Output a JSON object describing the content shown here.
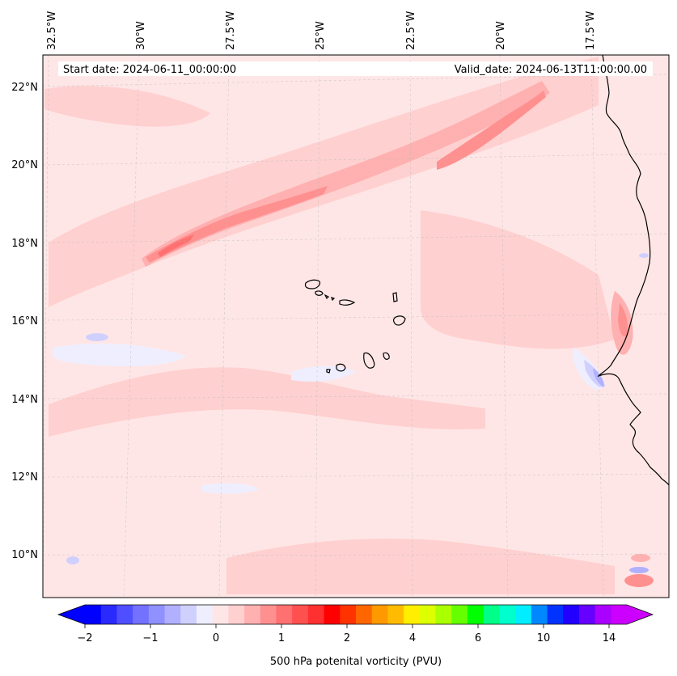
{
  "map": {
    "start_date": "Start date: 2024-06-11_00:00:00",
    "valid_date": "Valid_date: 2024-06-13T11:00:00.00",
    "lon_labels": [
      "32.5°W",
      "30°W",
      "27.5°W",
      "25°W",
      "22.5°W",
      "20°W",
      "17.5°W"
    ],
    "lat_labels": [
      "22°N",
      "20°N",
      "18°N",
      "16°N",
      "14°N",
      "12°N",
      "10°N"
    ],
    "background_color": "#ffe6e6",
    "coastline_color": "#000000"
  },
  "colorbar": {
    "label": "500 hPa potenital vorticity (PVU)",
    "tick_labels": [
      "−2",
      "−1",
      "0",
      "1",
      "2",
      "4",
      "6",
      "10",
      "14"
    ],
    "colors": [
      "#0000ff",
      "#2a2aff",
      "#4f4fff",
      "#7272ff",
      "#9090ff",
      "#b0b0ff",
      "#d0d0ff",
      "#eeeeff",
      "#ffe6e6",
      "#ffd0d0",
      "#ffb0b0",
      "#ff9090",
      "#ff7070",
      "#ff5050",
      "#ff3030",
      "#ff0000",
      "#ff3300",
      "#ff6600",
      "#ff9900",
      "#ffbb00",
      "#ffee00",
      "#ddff00",
      "#aaff00",
      "#66ff00",
      "#00ff00",
      "#00ff88",
      "#00ffcc",
      "#00eeff",
      "#0088ff",
      "#0033ff",
      "#2200ff",
      "#6600ff",
      "#aa00ff",
      "#cc00ff"
    ],
    "under_color": "#0000ff",
    "over_color": "#cc00ff"
  }
}
